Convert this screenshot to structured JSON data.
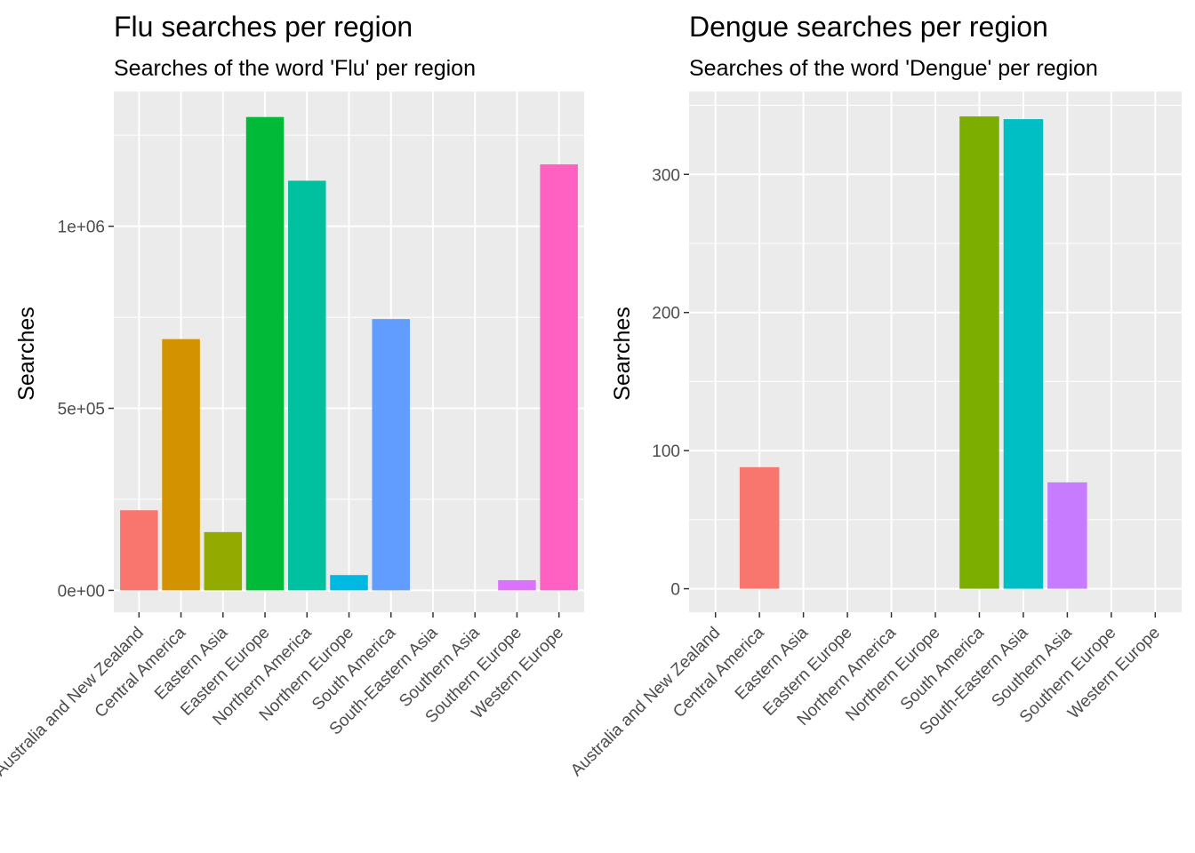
{
  "chart_data": [
    {
      "type": "bar",
      "title": "Flu searches per region",
      "subtitle": "Searches of the word 'Flu' per region",
      "xlabel": "",
      "ylabel": "Searches",
      "categories": [
        "Australia and New Zealand",
        "Central America",
        "Eastern Asia",
        "Eastern Europe",
        "Northern America",
        "Northern Europe",
        "South America",
        "South-Eastern Asia",
        "Southern Asia",
        "Southern Europe",
        "Western Europe"
      ],
      "values": [
        220000,
        690000,
        160000,
        1300000,
        1125000,
        42000,
        745000,
        0,
        0,
        28000,
        1170000
      ],
      "colors": [
        "#F8766D",
        "#D39200",
        "#93AA00",
        "#00BA38",
        "#00C19F",
        "#00B9E3",
        "#619CFF",
        "#DB72FB",
        "#DB72FB",
        "#DB72FB",
        "#FF61C3"
      ],
      "ylim": [
        -60000,
        1370000
      ],
      "yticks": [
        0,
        500000,
        1000000
      ],
      "ytick_labels": [
        "0e+00",
        "5e+05",
        "1e+06"
      ],
      "yminor": [
        250000,
        750000,
        1250000
      ],
      "grid": true,
      "legend": "none"
    },
    {
      "type": "bar",
      "title": "Dengue searches per region",
      "subtitle": "Searches of the word 'Dengue' per region",
      "xlabel": "",
      "ylabel": "Searches",
      "categories": [
        "Australia and New Zealand",
        "Central America",
        "Eastern Asia",
        "Eastern Europe",
        "Northern America",
        "Northern Europe",
        "South America",
        "South-Eastern Asia",
        "Southern Asia",
        "Southern Europe",
        "Western Europe"
      ],
      "values": [
        0,
        88,
        0,
        0,
        0,
        0,
        342,
        340,
        77,
        0,
        0
      ],
      "colors": [
        "#F8766D",
        "#F8766D",
        "#F8766D",
        "#F8766D",
        "#F8766D",
        "#F8766D",
        "#7CAE00",
        "#00BFC4",
        "#C77CFF",
        "#C77CFF",
        "#C77CFF"
      ],
      "ylim": [
        -17,
        360
      ],
      "yticks": [
        0,
        100,
        200,
        300
      ],
      "ytick_labels": [
        "0",
        "100",
        "200",
        "300"
      ],
      "yminor": [
        50,
        150,
        250,
        350
      ],
      "grid": true,
      "legend": "none"
    }
  ]
}
